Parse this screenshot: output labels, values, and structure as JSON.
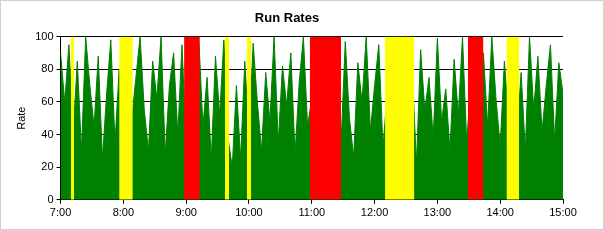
{
  "chart_data": {
    "type": "area",
    "title": "Run Rates",
    "y_label": "Rate",
    "x": [
      420,
      424,
      428,
      432,
      436,
      440,
      444,
      448,
      452,
      456,
      460,
      464,
      468,
      472,
      476,
      480,
      484,
      488,
      492,
      496,
      500,
      504,
      508,
      512,
      516,
      520,
      524,
      528,
      532,
      536,
      540,
      544,
      548,
      552,
      556,
      560,
      564,
      568,
      572,
      576,
      580,
      584,
      588,
      592,
      596,
      600,
      604,
      608,
      612,
      616,
      620,
      624,
      628,
      632,
      636,
      640,
      644,
      648,
      652,
      656,
      660,
      664,
      668,
      672,
      676,
      680,
      684,
      688,
      692,
      696,
      700,
      704,
      708,
      712,
      716,
      720,
      724,
      728,
      732,
      736,
      740,
      744,
      748,
      752,
      756,
      760,
      764,
      768,
      772,
      776,
      780,
      784,
      788,
      792,
      796,
      800,
      804,
      808,
      812,
      816,
      820,
      824,
      828,
      832,
      836,
      840,
      844,
      848,
      852,
      856,
      860,
      864,
      868,
      872,
      876,
      880,
      884,
      888,
      892,
      896,
      900
    ],
    "series": [
      {
        "color": "#008000",
        "values": [
          90,
          60,
          95,
          40,
          85,
          30,
          100,
          70,
          45,
          88,
          25,
          65,
          98,
          35,
          80,
          22,
          92,
          50,
          75,
          100,
          55,
          30,
          85,
          62,
          100,
          28,
          70,
          90,
          40,
          95,
          35,
          80,
          60,
          100,
          45,
          75,
          25,
          88,
          52,
          98,
          38,
          20,
          70,
          25,
          85,
          40,
          96,
          60,
          30,
          78,
          48,
          100,
          35,
          82,
          58,
          90,
          28,
          72,
          100,
          45,
          62,
          30,
          88,
          55,
          100,
          40,
          75,
          35,
          97,
          50,
          26,
          84,
          60,
          100,
          42,
          70,
          95,
          32,
          65,
          88,
          30,
          58,
          100,
          45,
          80,
          22,
          92,
          55,
          75,
          38,
          99,
          48,
          68,
          30,
          86,
          52,
          100,
          35,
          72,
          60,
          28,
          90,
          45,
          100,
          62,
          33,
          85,
          50,
          96,
          40,
          78,
          30,
          100,
          55,
          88,
          42,
          70,
          95,
          36,
          84,
          65
        ]
      }
    ],
    "bands": [
      {
        "start": 430,
        "end": 433,
        "value": 100,
        "color": "#ffff00"
      },
      {
        "start": 476,
        "end": 489,
        "value": 100,
        "color": "#ffff00"
      },
      {
        "start": 538,
        "end": 553,
        "value": 100,
        "color": "#ff0000"
      },
      {
        "start": 577,
        "end": 581,
        "value": 100,
        "color": "#ffff00"
      },
      {
        "start": 598,
        "end": 602,
        "value": 100,
        "color": "#ffff00"
      },
      {
        "start": 658,
        "end": 688,
        "value": 100,
        "color": "#ff0000"
      },
      {
        "start": 730,
        "end": 758,
        "value": 100,
        "color": "#ffff00"
      },
      {
        "start": 809,
        "end": 824,
        "value": 100,
        "color": "#ff0000"
      },
      {
        "start": 846,
        "end": 858,
        "value": 100,
        "color": "#ffff00"
      }
    ],
    "xlim": [
      420,
      900
    ],
    "xticks": [
      {
        "value": 420,
        "label": "7:00"
      },
      {
        "value": 480,
        "label": "8:00"
      },
      {
        "value": 540,
        "label": "9:00"
      },
      {
        "value": 600,
        "label": "10:00"
      },
      {
        "value": 660,
        "label": "11:00"
      },
      {
        "value": 720,
        "label": "12:00"
      },
      {
        "value": 780,
        "label": "13:00"
      },
      {
        "value": 840,
        "label": "14:00"
      },
      {
        "value": 900,
        "label": "15:00"
      }
    ],
    "ylim": [
      0,
      100
    ],
    "yticks": [
      0,
      20,
      40,
      60,
      80,
      100
    ],
    "grid": "y"
  }
}
